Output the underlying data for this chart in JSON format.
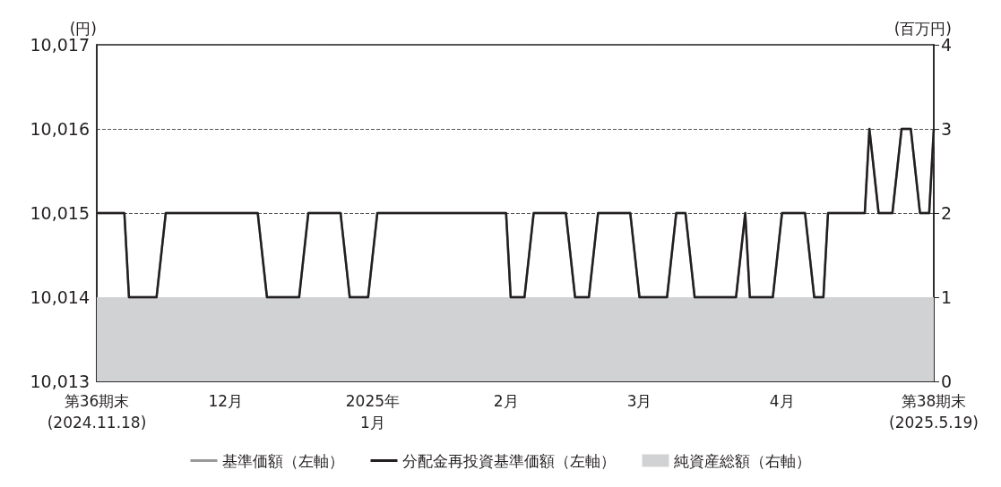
{
  "chart_data": {
    "type": "line",
    "ylabel": "(円)",
    "y2label": "(百万円)",
    "xlim": [
      "2024-11-18",
      "2025-05-19"
    ],
    "xticks": [
      {
        "value": "2024-11-18",
        "label": "第36期末\n(2024.11.18)"
      },
      {
        "value": "2024-12-01",
        "label": null
      },
      {
        "value": "2024-12-16",
        "label": "12月"
      },
      {
        "value": "2025-01-01",
        "label": null
      },
      {
        "value": "2025-01-17",
        "label": "2025年\n1月"
      },
      {
        "value": "2025-02-01",
        "label": null
      },
      {
        "value": "2025-02-15",
        "label": "2月"
      },
      {
        "value": "2025-03-01",
        "label": null
      },
      {
        "value": "2025-03-16",
        "label": "3月"
      },
      {
        "value": "2025-04-01",
        "label": null
      },
      {
        "value": "2025-04-16",
        "label": "4月"
      },
      {
        "value": "2025-05-19",
        "label": "第38期末\n(2025.5.19)"
      }
    ],
    "ylim": [
      10013,
      10017
    ],
    "yticks": [
      {
        "value": 10013,
        "label": "10,013"
      },
      {
        "value": 10014,
        "label": "10,014"
      },
      {
        "value": 10015,
        "label": "10,015"
      },
      {
        "value": 10016,
        "label": "10,016"
      },
      {
        "value": 10017,
        "label": "10,017"
      }
    ],
    "y2lim": [
      0,
      4
    ],
    "y2ticks": [
      0,
      1,
      2,
      3,
      4
    ],
    "x": [
      "2024-11-18",
      "2024-11-24",
      "2024-11-25",
      "2024-12-01",
      "2024-12-03",
      "2024-12-23",
      "2024-12-25",
      "2025-01-01",
      "2025-01-03",
      "2025-01-10",
      "2025-01-12",
      "2025-01-16",
      "2025-01-18",
      "2025-02-15",
      "2025-02-16",
      "2025-02-19",
      "2025-02-21",
      "2025-02-28",
      "2025-03-02",
      "2025-03-05",
      "2025-03-07",
      "2025-03-14",
      "2025-03-16",
      "2025-03-22",
      "2025-03-24",
      "2025-03-26",
      "2025-03-28",
      "2025-04-06",
      "2025-04-08",
      "2025-04-09",
      "2025-04-14",
      "2025-04-16",
      "2025-04-21",
      "2025-04-23",
      "2025-04-25",
      "2025-04-26",
      "2025-05-04",
      "2025-05-05",
      "2025-05-07",
      "2025-05-10",
      "2025-05-12",
      "2025-05-14",
      "2025-05-16",
      "2025-05-18",
      "2025-05-19"
    ],
    "series": [
      {
        "name": "基準価額（左軸）",
        "color": "#999999",
        "values": [
          10015,
          10015,
          10014,
          10014,
          10015,
          10015,
          10014,
          10014,
          10015,
          10015,
          10014,
          10014,
          10015,
          10015,
          10014,
          10014,
          10015,
          10015,
          10014,
          10014,
          10015,
          10015,
          10014,
          10014,
          10015,
          10015,
          10014,
          10014,
          10015,
          10014,
          10014,
          10015,
          10015,
          10014,
          10014,
          10015,
          10015,
          10016,
          10015,
          10015,
          10016,
          10016,
          10015,
          10015,
          10016
        ]
      },
      {
        "name": "分配金再投資基準価額（左軸）",
        "color": "#231f20",
        "values": [
          10015,
          10015,
          10014,
          10014,
          10015,
          10015,
          10014,
          10014,
          10015,
          10015,
          10014,
          10014,
          10015,
          10015,
          10014,
          10014,
          10015,
          10015,
          10014,
          10014,
          10015,
          10015,
          10014,
          10014,
          10015,
          10015,
          10014,
          10014,
          10015,
          10014,
          10014,
          10015,
          10015,
          10014,
          10014,
          10015,
          10015,
          10016,
          10015,
          10015,
          10016,
          10016,
          10015,
          10015,
          10016
        ]
      },
      {
        "name": "純資産総額（右軸）",
        "type": "area",
        "axis": "y2",
        "color": "#d1d2d4",
        "x": [
          "2024-11-18",
          "2025-05-19"
        ],
        "values": [
          1,
          1
        ]
      }
    ],
    "grid": "y",
    "legend": "bottom",
    "line_style": "solid",
    "marker": "none"
  }
}
